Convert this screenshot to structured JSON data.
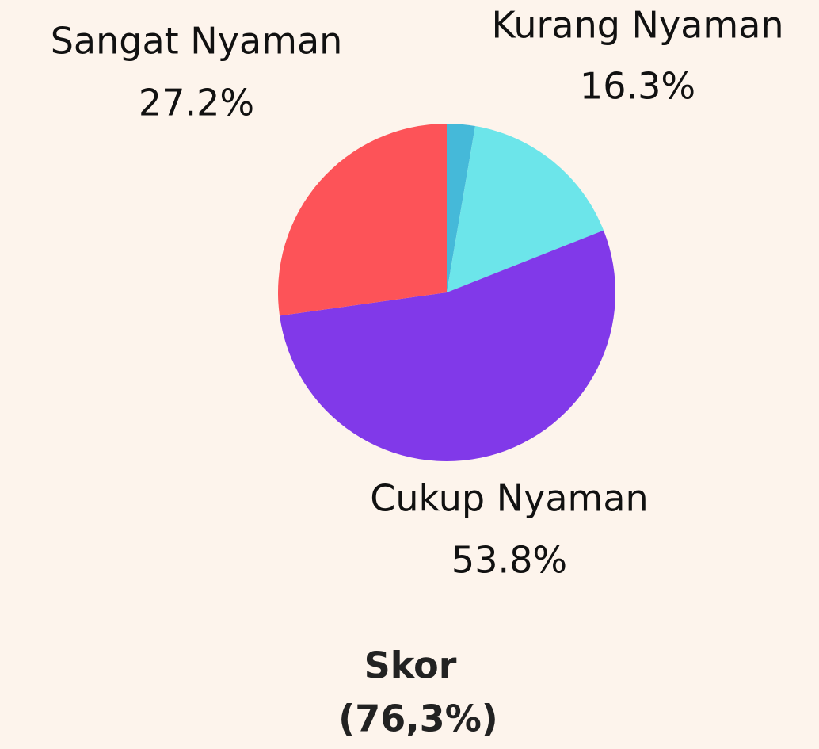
{
  "chart_data": {
    "type": "pie",
    "categories": [
      null,
      "Kurang Nyaman",
      "Cukup Nyaman",
      "Sangat Nyaman"
    ],
    "values": [
      2.7,
      16.3,
      53.8,
      27.2
    ],
    "value_labels": [
      null,
      "16.3%",
      "53.8%",
      "27.2%"
    ],
    "colors": [
      "#45b9d9",
      "#6ce5ea",
      "#8139e9",
      "#fd5358"
    ],
    "annotations": [
      "Skor",
      "(76,3%)"
    ]
  }
}
